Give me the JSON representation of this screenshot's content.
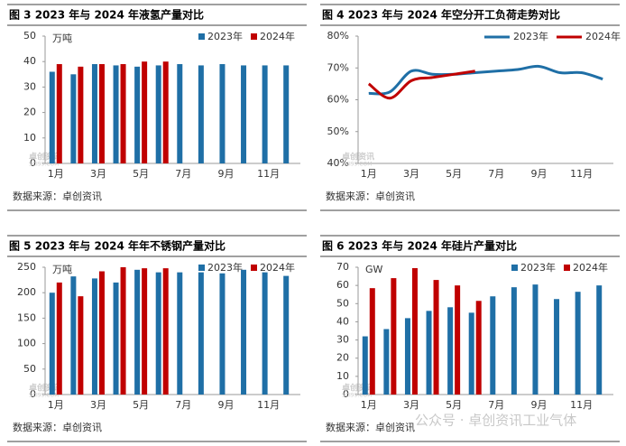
{
  "chart_data": [
    {
      "type": "bar",
      "title": "图 3  2023 年与 2024 年液氢产量对比",
      "unit": "万吨",
      "source": "数据来源：卓创资讯",
      "categories": [
        "1月",
        null,
        "3月",
        null,
        "5月",
        null,
        "7月",
        null,
        "9月",
        null,
        "11月",
        null
      ],
      "series": [
        {
          "name": "2023年",
          "color": "#1f6fa6",
          "values": [
            36,
            35,
            39,
            38.5,
            38,
            38.5,
            39,
            38.5,
            39,
            38.5,
            38.5,
            38.5
          ]
        },
        {
          "name": "2024年",
          "color": "#c00000",
          "values": [
            39,
            38,
            39,
            39,
            40,
            40,
            null,
            null,
            null,
            null,
            null,
            null
          ]
        }
      ],
      "ylim": [
        0,
        50
      ],
      "yticks": [
        0,
        10,
        20,
        30,
        40,
        50
      ]
    },
    {
      "type": "line",
      "title": "图 4  2023 年与 2024 年空分开工负荷走势对比",
      "source": "数据来源：卓创资讯",
      "categories": [
        "1月",
        null,
        "3月",
        null,
        "5月",
        null,
        "7月",
        null,
        "9月",
        null,
        "11月",
        null
      ],
      "series": [
        {
          "name": "2023年",
          "color": "#1f6fa6",
          "values": [
            62,
            62.5,
            69,
            68,
            68,
            68.5,
            69,
            69.5,
            70.5,
            68.5,
            68.5,
            66.5
          ]
        },
        {
          "name": "2024年",
          "color": "#c00000",
          "values": [
            65,
            60.5,
            66,
            67,
            68,
            69,
            null,
            null,
            null,
            null,
            null,
            null
          ]
        }
      ],
      "ylim": [
        40,
        80
      ],
      "yticks": [
        {
          "value": 40,
          "label": "40%"
        },
        {
          "value": 50,
          "label": "50%"
        },
        {
          "value": 60,
          "label": "60%"
        },
        {
          "value": 70,
          "label": "70%"
        },
        {
          "value": 80,
          "label": "80%"
        }
      ]
    },
    {
      "type": "bar",
      "title": "图 5  2023 年与 2024 年年不锈钢产量对比",
      "unit": "万吨",
      "source": "数据来源：卓创资讯",
      "categories": [
        "1月",
        null,
        "3月",
        null,
        "5月",
        null,
        "7月",
        null,
        "9月",
        null,
        "11月",
        null
      ],
      "series": [
        {
          "name": "2023年",
          "color": "#1f6fa6",
          "values": [
            200,
            232,
            228,
            220,
            245,
            240,
            240,
            240,
            238,
            245,
            240,
            233
          ]
        },
        {
          "name": "2024年",
          "color": "#c00000",
          "values": [
            220,
            193,
            242,
            250,
            248,
            248,
            null,
            null,
            null,
            null,
            null,
            null
          ]
        }
      ],
      "ylim": [
        0,
        250
      ],
      "yticks": [
        0,
        50,
        100,
        150,
        200,
        250
      ]
    },
    {
      "type": "bar",
      "title": "图 6  2023 年与 2024 年硅片产量对比",
      "unit": "GW",
      "source": "数据来源：卓创资讯",
      "categories": [
        "1月",
        null,
        "3月",
        null,
        "5月",
        null,
        "7月",
        null,
        "9月",
        null,
        "11月",
        null
      ],
      "series": [
        {
          "name": "2023年",
          "color": "#1f6fa6",
          "values": [
            32,
            36,
            42,
            46,
            48,
            45,
            54,
            59,
            60.5,
            52.5,
            56.5,
            60
          ]
        },
        {
          "name": "2024年",
          "color": "#c00000",
          "values": [
            58.5,
            64,
            69.5,
            63,
            60,
            51.5,
            null,
            null,
            null,
            null,
            null,
            null
          ]
        }
      ],
      "ylim": [
        0,
        70
      ],
      "yticks": [
        0,
        10,
        20,
        30,
        40,
        50,
        60,
        70
      ]
    }
  ],
  "logo": {
    "name": "卓创资讯",
    "site": "SCI99.COM"
  },
  "watermark": "公众号 · 卓创资讯工业气体"
}
